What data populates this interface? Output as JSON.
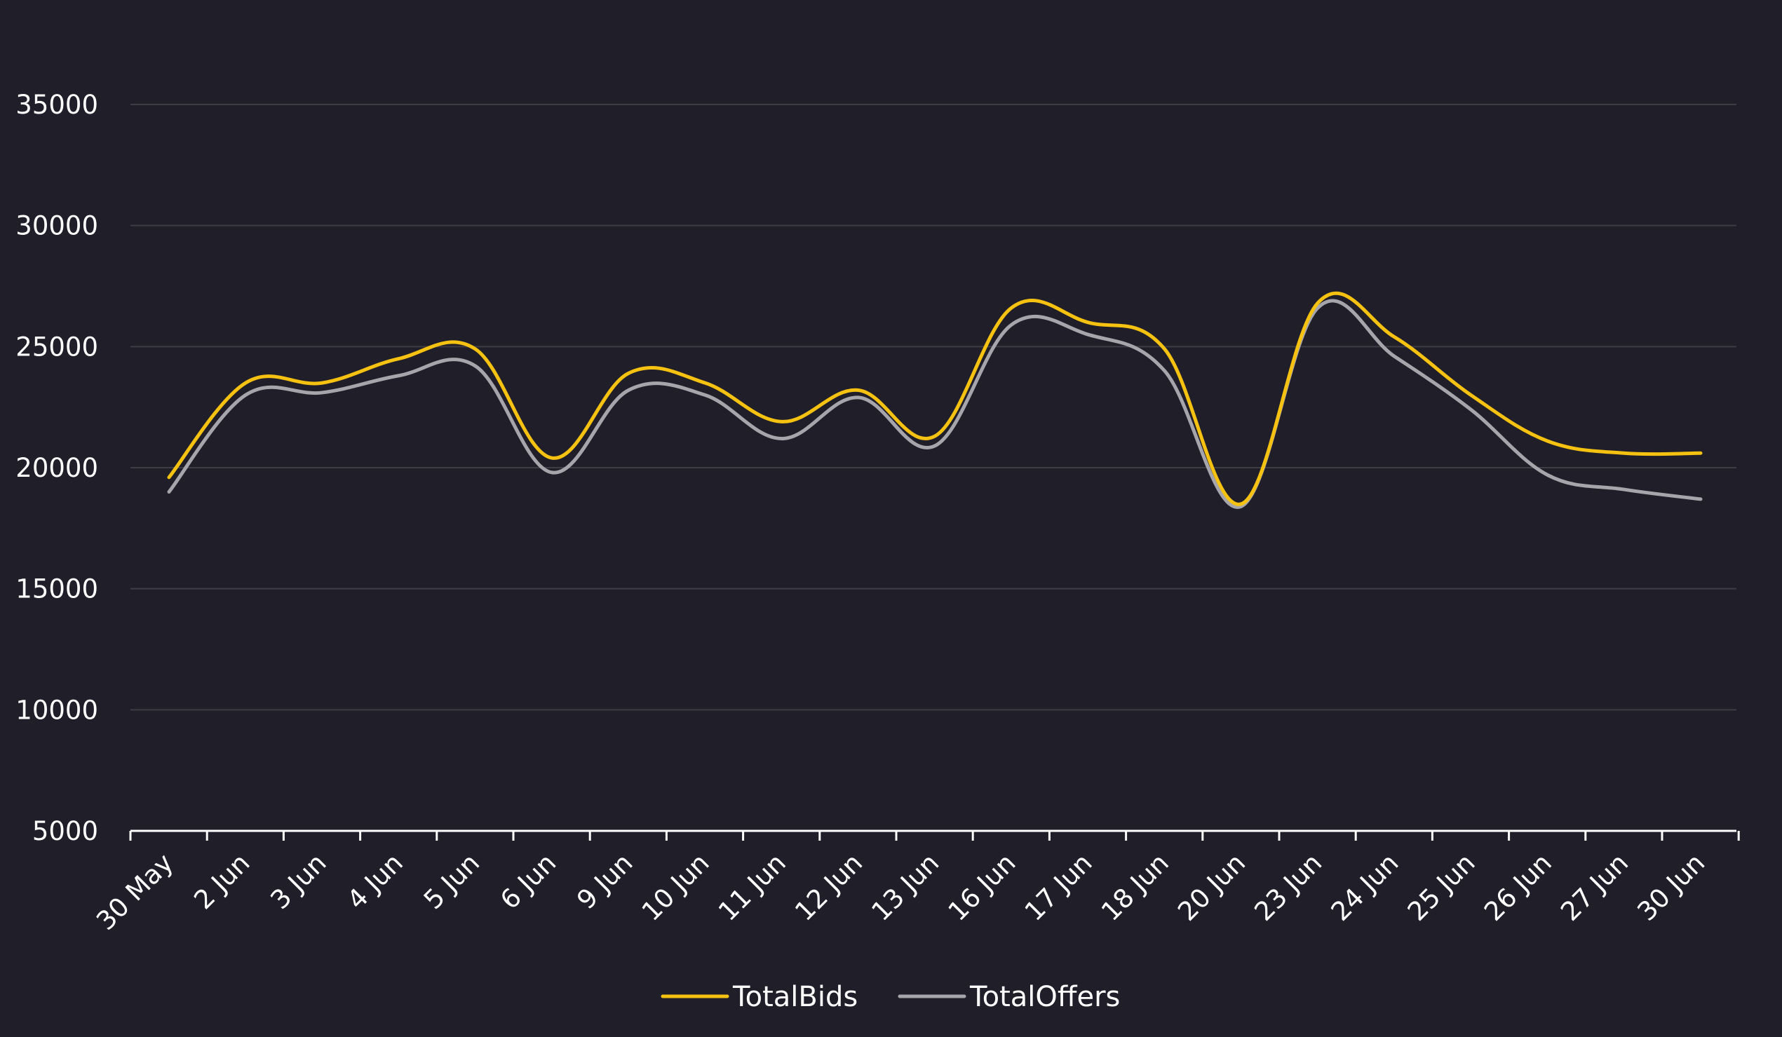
{
  "chart_data": {
    "type": "line",
    "title": "",
    "xlabel": "",
    "ylabel": "",
    "categories": [
      "30 May",
      "2 Jun",
      "3 Jun",
      "4 Jun",
      "5 Jun",
      "6 Jun",
      "9 Jun",
      "10 Jun",
      "11 Jun",
      "12 Jun",
      "13 Jun",
      "16 Jun",
      "17 Jun",
      "18 Jun",
      "20 Jun",
      "23 Jun",
      "24 Jun",
      "25 Jun",
      "26 Jun",
      "27 Jun",
      "30 Jun"
    ],
    "series": [
      {
        "name": "TotalBids",
        "color": "#f5c211",
        "values": [
          19600,
          23500,
          23500,
          24500,
          24900,
          20400,
          23900,
          23500,
          21900,
          23200,
          21300,
          26600,
          26000,
          24900,
          18500,
          26800,
          25400,
          23000,
          21100,
          20600,
          20600
        ]
      },
      {
        "name": "TotalOffers",
        "color": "#a6a5ab",
        "values": [
          19000,
          23000,
          23100,
          23800,
          24200,
          19800,
          23200,
          23000,
          21200,
          22900,
          20900,
          25900,
          25500,
          24000,
          18400,
          26600,
          24600,
          22400,
          19700,
          19100,
          18700
        ]
      }
    ],
    "ylim": [
      5000,
      35000
    ],
    "yticks": [
      5000,
      10000,
      15000,
      20000,
      25000,
      30000,
      35000
    ],
    "grid": true,
    "legend": "bottom-center",
    "colors": {
      "background": "#1f1e29",
      "grid": "#3e3d46",
      "axis": "#ffffff",
      "text": "#ffffff"
    }
  }
}
